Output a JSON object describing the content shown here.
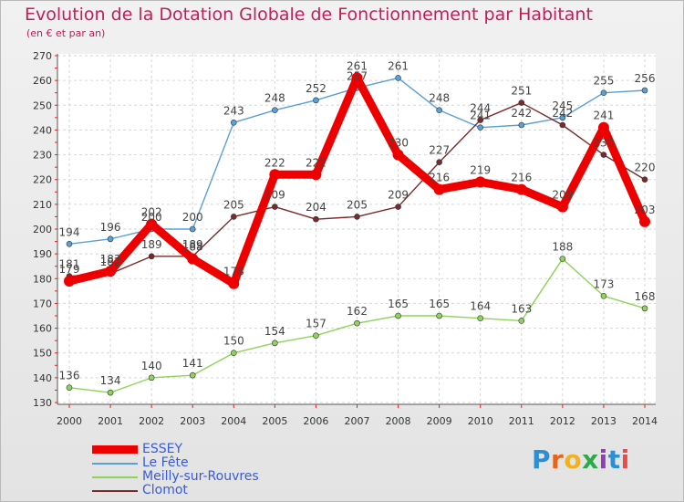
{
  "header": {
    "title": "Evolution de la Dotation Globale de Fonctionnement par Habitant",
    "subtitle": "(en € et par an)"
  },
  "chart_data": {
    "type": "line",
    "title": "Evolution de la Dotation Globale de Fonctionnement par Habitant",
    "subtitle": "(en € et par an)",
    "xlabel": "",
    "ylabel": "",
    "x": [
      "2000",
      "2001",
      "2002",
      "2003",
      "2004",
      "2005",
      "2006",
      "2007",
      "2008",
      "2009",
      "2010",
      "2011",
      "2012",
      "2013",
      "2014"
    ],
    "ylim": [
      130,
      270
    ],
    "yticks": [
      130,
      140,
      150,
      160,
      170,
      180,
      190,
      200,
      210,
      220,
      230,
      240,
      250,
      260,
      270
    ],
    "grid": true,
    "legend_position": "bottom-left",
    "series": [
      {
        "name": "ESSEY",
        "color": "#ee0000",
        "values": [
          179,
          183,
          202,
          188,
          178,
          222,
          222,
          261,
          230,
          216,
          219,
          216,
          209,
          241,
          203
        ]
      },
      {
        "name": "Le Fête",
        "color": "#5aa0d8",
        "values": [
          194,
          196,
          200,
          200,
          243,
          248,
          252,
          257,
          261,
          248,
          241,
          242,
          245,
          255,
          256
        ]
      },
      {
        "name": "Meilly-sur-Rouvres",
        "color": "#8ed45a",
        "values": [
          136,
          134,
          140,
          141,
          150,
          154,
          157,
          162,
          165,
          165,
          164,
          163,
          188,
          173,
          168
        ]
      },
      {
        "name": "Clomot",
        "color": "#7a2a2a",
        "values": [
          181,
          182,
          189,
          189,
          205,
          209,
          204,
          205,
          209,
          227,
          244,
          251,
          242,
          230,
          220
        ]
      }
    ]
  },
  "logo": {
    "text": "Proxiti"
  }
}
